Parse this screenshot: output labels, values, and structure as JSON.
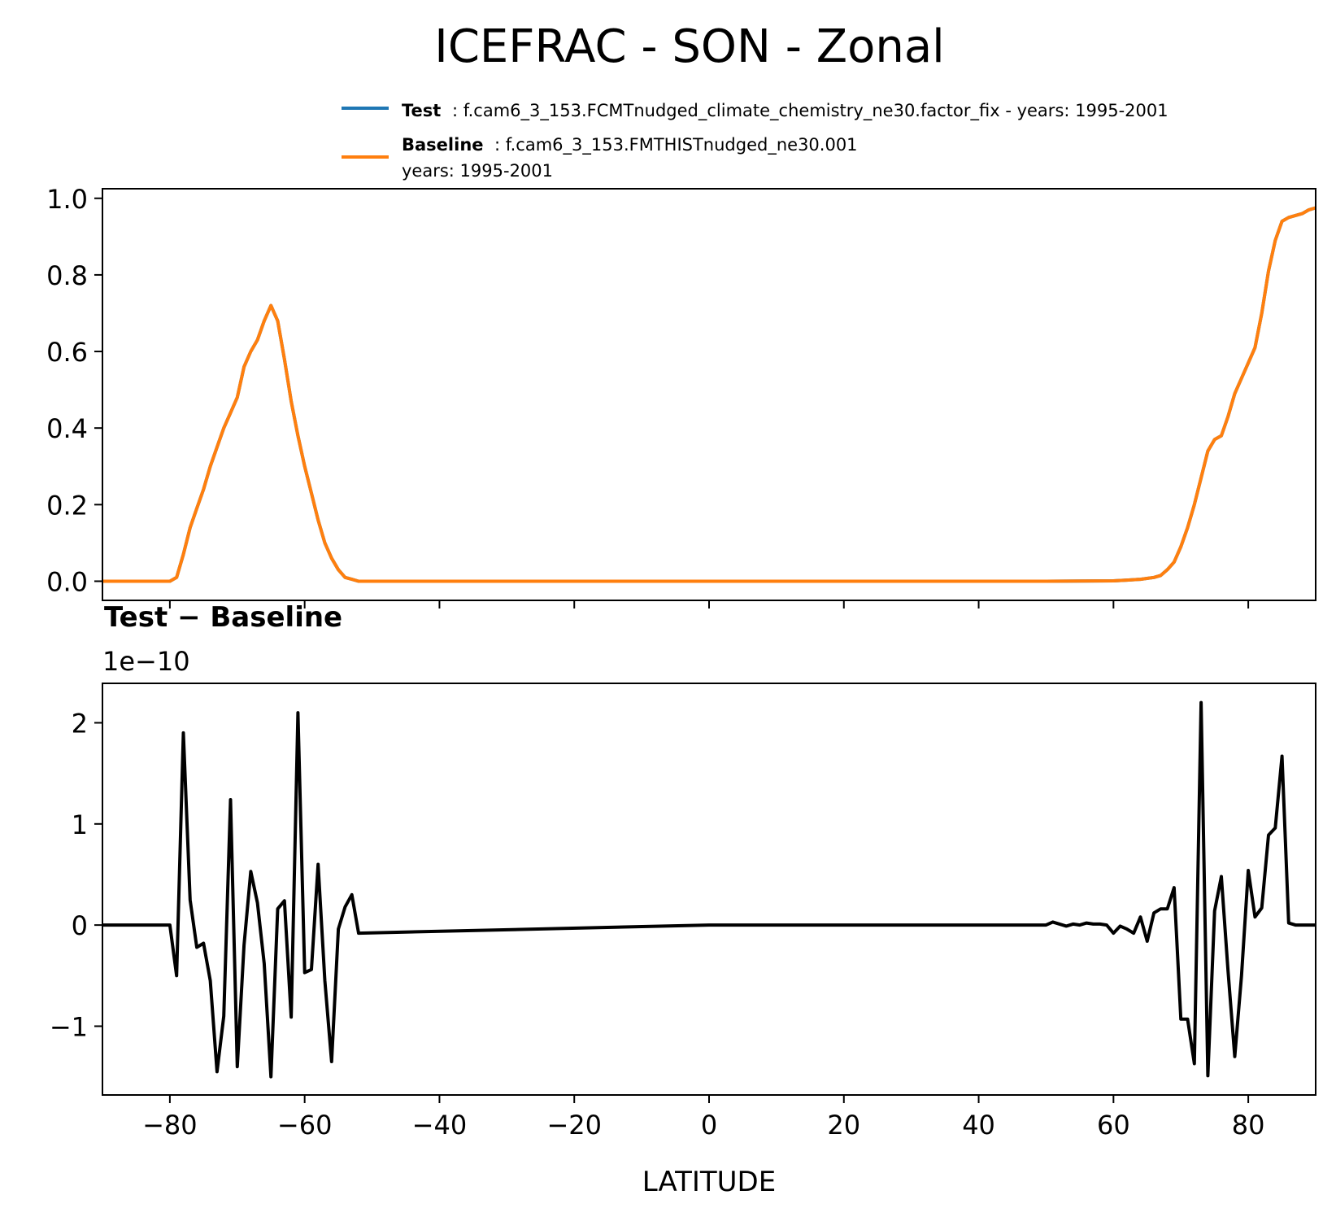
{
  "figure": {
    "title": "ICEFRAC - SON - Zonal"
  },
  "colors": {
    "test": "#1f77b4",
    "baseline": "#ff7f0e",
    "diff": "#000000",
    "axes": "#000000"
  },
  "legend": {
    "test_label": "Test",
    "test_text": ": f.cam6_3_153.FCMTnudged_climate_chemistry_ne30.factor_fix - years: 1995-2001",
    "baseline_label": "Baseline",
    "baseline_text": ": f.cam6_3_153.FMTHISTnudged_ne30.001",
    "baseline_text2": "years: 1995-2001"
  },
  "chart_data": [
    {
      "type": "line",
      "title": "ICEFRAC - SON - Zonal",
      "xlabel": "",
      "ylabel": "",
      "xlim": [
        -90,
        90
      ],
      "ylim": [
        -0.05,
        1.025
      ],
      "yticks": [
        "0.0",
        "0.2",
        "0.4",
        "0.6",
        "0.8",
        "1.0"
      ],
      "ytick_values": [
        0.0,
        0.2,
        0.4,
        0.6,
        0.8,
        1.0
      ],
      "xtick_values": [
        -80,
        -60,
        -40,
        -20,
        0,
        20,
        40,
        60,
        80
      ],
      "legend_position": "top-right (above axes)",
      "x": [
        -90,
        -80,
        -79,
        -78,
        -77,
        -76,
        -75,
        -74,
        -73,
        -72,
        -71,
        -70,
        -69,
        -68,
        -67,
        -66,
        -65,
        -64,
        -63,
        -62,
        -61,
        -60,
        -59,
        -58,
        -57,
        -56,
        -55,
        -54,
        -53,
        -52,
        -50,
        0,
        50,
        60,
        62,
        64,
        66,
        67,
        68,
        69,
        70,
        71,
        72,
        73,
        74,
        75,
        76,
        77,
        78,
        79,
        80,
        81,
        82,
        83,
        84,
        85,
        86,
        87,
        88,
        89,
        90
      ],
      "series": [
        {
          "name": "Test",
          "values": [
            0,
            0,
            0.01,
            0.07,
            0.14,
            0.19,
            0.24,
            0.3,
            0.35,
            0.4,
            0.44,
            0.48,
            0.56,
            0.6,
            0.63,
            0.68,
            0.72,
            0.68,
            0.58,
            0.47,
            0.38,
            0.3,
            0.23,
            0.16,
            0.1,
            0.06,
            0.03,
            0.01,
            0.005,
            0,
            0,
            0,
            0,
            0.001,
            0.003,
            0.005,
            0.01,
            0.015,
            0.03,
            0.05,
            0.09,
            0.14,
            0.2,
            0.27,
            0.34,
            0.37,
            0.38,
            0.43,
            0.49,
            0.53,
            0.57,
            0.61,
            0.7,
            0.81,
            0.89,
            0.94,
            0.95,
            0.955,
            0.96,
            0.97,
            0.975
          ]
        },
        {
          "name": "Baseline",
          "values": [
            0,
            0,
            0.01,
            0.07,
            0.14,
            0.19,
            0.24,
            0.3,
            0.35,
            0.4,
            0.44,
            0.48,
            0.56,
            0.6,
            0.63,
            0.68,
            0.72,
            0.68,
            0.58,
            0.47,
            0.38,
            0.3,
            0.23,
            0.16,
            0.1,
            0.06,
            0.03,
            0.01,
            0.005,
            0,
            0,
            0,
            0,
            0.001,
            0.003,
            0.005,
            0.01,
            0.015,
            0.03,
            0.05,
            0.09,
            0.14,
            0.2,
            0.27,
            0.34,
            0.37,
            0.38,
            0.43,
            0.49,
            0.53,
            0.57,
            0.61,
            0.7,
            0.81,
            0.89,
            0.94,
            0.95,
            0.955,
            0.96,
            0.97,
            0.975
          ]
        }
      ]
    },
    {
      "type": "line",
      "title": "Test − Baseline",
      "scale_label": "1e−10",
      "xlabel": "LATITUDE",
      "ylabel": "",
      "xlim": [
        -90,
        90
      ],
      "ylim": [
        -1.68,
        2.39
      ],
      "yticks": [
        "−1",
        "0",
        "1",
        "2"
      ],
      "ytick_values": [
        -1,
        0,
        1,
        2
      ],
      "xticks": [
        "−80",
        "−60",
        "−40",
        "−20",
        "0",
        "20",
        "40",
        "60",
        "80"
      ],
      "xtick_values": [
        -80,
        -60,
        -40,
        -20,
        0,
        20,
        40,
        60,
        80
      ],
      "x": [
        -90,
        -80,
        -79,
        -78,
        -77,
        -76,
        -75,
        -74,
        -73,
        -72,
        -71,
        -70,
        -69,
        -68,
        -67,
        -66,
        -65,
        -64,
        -63,
        -62,
        -61,
        -60,
        -59,
        -58,
        -57,
        -56,
        -55,
        -54,
        -53,
        -52,
        0,
        50,
        51,
        52,
        53,
        54,
        55,
        56,
        57,
        58,
        59,
        60,
        61,
        62,
        63,
        64,
        65,
        66,
        67,
        68,
        69,
        70,
        71,
        72,
        73,
        74,
        75,
        76,
        77,
        78,
        79,
        80,
        81,
        82,
        83,
        84,
        85,
        86,
        87,
        88,
        89,
        90
      ],
      "series": [
        {
          "name": "Test − Baseline",
          "values": [
            0,
            0,
            -0.5,
            1.9,
            0.25,
            -0.22,
            -0.18,
            -0.55,
            -1.45,
            -0.9,
            1.24,
            -1.4,
            -0.2,
            0.53,
            0.22,
            -0.38,
            -1.5,
            0.16,
            0.24,
            -0.91,
            2.1,
            -0.47,
            -0.44,
            0.6,
            -0.55,
            -1.35,
            -0.04,
            0.18,
            0.3,
            -0.08,
            0,
            0,
            0.03,
            0.01,
            -0.01,
            0.01,
            0,
            0.02,
            0.01,
            0.01,
            0,
            -0.08,
            -0.01,
            -0.04,
            -0.08,
            0.08,
            -0.16,
            0.12,
            0.16,
            0.16,
            0.37,
            -0.93,
            -0.93,
            -1.37,
            2.2,
            -1.49,
            0.14,
            0.48,
            -0.45,
            -1.3,
            -0.5,
            0.54,
            0.08,
            0.17,
            0.89,
            0.96,
            1.67,
            0.02,
            0,
            0,
            0,
            0
          ]
        }
      ]
    }
  ]
}
